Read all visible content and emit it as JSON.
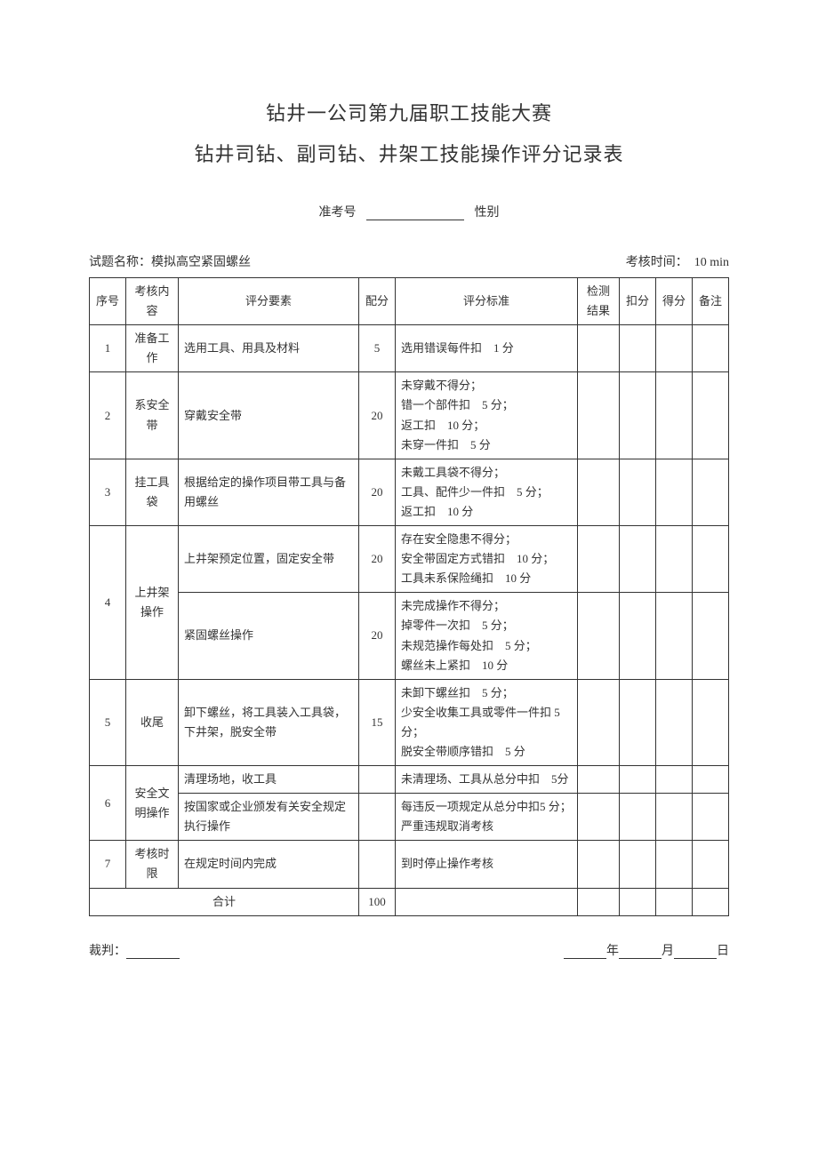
{
  "header": {
    "title1": "钻井一公司第九届职工技能大赛",
    "title2": "钻井司钻、副司钻、井架工技能操作评分记录表",
    "exam_no_label": "准考号",
    "gender_label": "性别"
  },
  "info": {
    "topic_label": "试题名称：",
    "topic_value": "模拟高空紧固螺丝",
    "time_label": "考核时间：",
    "time_value": "10 min"
  },
  "columns": {
    "num": "序号",
    "item": "考核内容",
    "factor": "评分要素",
    "score": "配分",
    "standard": "评分标准",
    "result": "检测结果",
    "deduct": "扣分",
    "get": "得分",
    "note": "备注"
  },
  "rows": [
    {
      "num": "1",
      "item": "准备工作",
      "factors": [
        {
          "factor": "选用工具、用具及材料",
          "score": "5",
          "standard": "选用错误每件扣　1 分"
        }
      ]
    },
    {
      "num": "2",
      "item": "系安全带",
      "factors": [
        {
          "factor": "穿戴安全带",
          "score": "20",
          "standard": "未穿戴不得分；\n错一个部件扣　5 分；\n返工扣　10 分；\n未穿一件扣　5 分"
        }
      ]
    },
    {
      "num": "3",
      "item": "挂工具袋",
      "factors": [
        {
          "factor": "根据给定的操作项目带工具与备用螺丝",
          "score": "20",
          "standard": "未戴工具袋不得分；\n工具、配件少一件扣　5 分；\n返工扣　10 分"
        }
      ]
    },
    {
      "num": "4",
      "item": "上井架操作",
      "factors": [
        {
          "factor": "上井架预定位置，固定安全带",
          "score": "20",
          "standard": "存在安全隐患不得分；\n安全带固定方式错扣　10 分；\n工具未系保险绳扣　10 分"
        },
        {
          "factor": "紧固螺丝操作",
          "score": "20",
          "standard": "未完成操作不得分；\n掉零件一次扣　5 分；\n未规范操作每处扣　5 分；\n螺丝未上紧扣　10 分"
        }
      ]
    },
    {
      "num": "5",
      "item": "收尾",
      "factors": [
        {
          "factor": "卸下螺丝，将工具装入工具袋，下井架，脱安全带",
          "score": "15",
          "standard": "未卸下螺丝扣　5 分；\n少安全收集工具或零件一件扣 5 分；\n脱安全带顺序错扣　5 分"
        }
      ]
    },
    {
      "num": "6",
      "item": "安全文明操作",
      "factors": [
        {
          "factor": "清理场地，收工具",
          "score": "",
          "standard": "未清理场、工具从总分中扣　5分"
        },
        {
          "factor": "按国家或企业颁发有关安全规定执行操作",
          "score": "",
          "standard": "每违反一项规定从总分中扣5 分；严重违规取消考核"
        }
      ]
    },
    {
      "num": "7",
      "item": "考核时限",
      "factors": [
        {
          "factor": "在规定时间内完成",
          "score": "",
          "standard": "到时停止操作考核"
        }
      ]
    }
  ],
  "total": {
    "label": "合计",
    "value": "100"
  },
  "footer": {
    "referee_label": "裁判：",
    "year": "年",
    "month": "月",
    "day": "日"
  }
}
